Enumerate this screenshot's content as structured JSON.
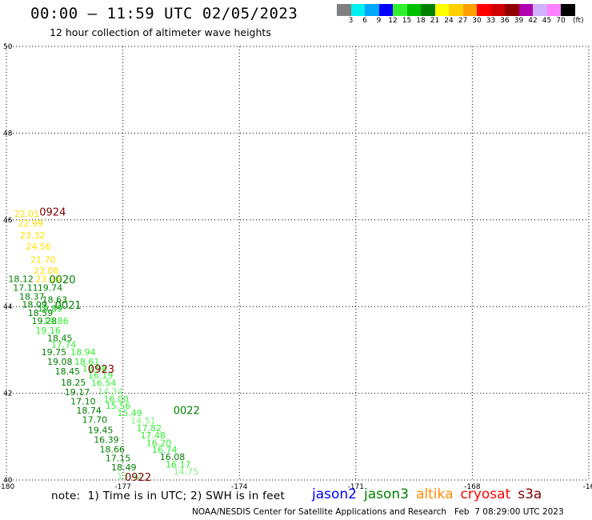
{
  "title": "00:00 – 11:59 UTC 02/05/2023",
  "subtitle": "12 hour collection of altimeter wave heights",
  "legend": {
    "colors": [
      "#808080",
      "#00f0f0",
      "#00a8ff",
      "#0000ff",
      "#30f030",
      "#00c000",
      "#008000",
      "#ffff00",
      "#ffd000",
      "#ffa000",
      "#ff0000",
      "#d00000",
      "#900000",
      "#b000b0",
      "#d0b0ff",
      "#ff80ff",
      "#000000"
    ],
    "labels": [
      "3",
      "6",
      "9",
      "12",
      "15",
      "18",
      "21",
      "24",
      "27",
      "30",
      "33",
      "36",
      "39",
      "42",
      "45",
      "70"
    ],
    "unit": "(ft)"
  },
  "axes": {
    "lat_labels": [
      "50",
      "48",
      "46",
      "44",
      "42",
      "40"
    ],
    "lon_labels": [
      "-180",
      "-177",
      "-174",
      "-171",
      "-168",
      "-16"
    ]
  },
  "observations": [
    {
      "text": "22.01",
      "lon": -179.8,
      "lat": 46.07,
      "color": "#ffe000"
    },
    {
      "text": "22.99",
      "lon": -179.7,
      "lat": 45.85,
      "color": "#ffe000"
    },
    {
      "text": "23.32",
      "lon": -179.65,
      "lat": 45.57,
      "color": "#ffe000"
    },
    {
      "text": "24.56",
      "lon": -179.5,
      "lat": 45.31,
      "color": "#ffe000"
    },
    {
      "text": "21.70",
      "lon": -179.38,
      "lat": 45.01,
      "color": "#ffe000"
    },
    {
      "text": "23.08",
      "lon": -179.3,
      "lat": 44.76,
      "color": "#ffe000"
    },
    {
      "text": "18.12",
      "lon": -179.95,
      "lat": 44.57,
      "color": "#008000"
    },
    {
      "text": "23.06",
      "lon": -179.25,
      "lat": 44.57,
      "color": "#ffe000"
    },
    {
      "text": "17.11",
      "lon": -179.83,
      "lat": 44.36,
      "color": "#008000"
    },
    {
      "text": "19.74",
      "lon": -179.2,
      "lat": 44.36,
      "color": "#008000"
    },
    {
      "text": "18.37",
      "lon": -179.67,
      "lat": 44.16,
      "color": "#008000"
    },
    {
      "text": "18.63",
      "lon": -179.08,
      "lat": 44.09,
      "color": "#008000"
    },
    {
      "text": "18.09",
      "lon": -179.6,
      "lat": 43.98,
      "color": "#008000"
    },
    {
      "text": "19.89",
      "lon": -179.2,
      "lat": 43.88,
      "color": "#00c000"
    },
    {
      "text": "18.59",
      "lon": -179.45,
      "lat": 43.78,
      "color": "#008000"
    },
    {
      "text": "19.28",
      "lon": -179.35,
      "lat": 43.6,
      "color": "#008000"
    },
    {
      "text": "19.86",
      "lon": -179.05,
      "lat": 43.6,
      "color": "#30f030"
    },
    {
      "text": "19.16",
      "lon": -179.25,
      "lat": 43.38,
      "color": "#30f030"
    },
    {
      "text": "18.45",
      "lon": -178.95,
      "lat": 43.2,
      "color": "#008000"
    },
    {
      "text": "17.74",
      "lon": -178.85,
      "lat": 43.05,
      "color": "#30f030"
    },
    {
      "text": "19.75",
      "lon": -179.1,
      "lat": 42.88,
      "color": "#008000"
    },
    {
      "text": "18.94",
      "lon": -178.35,
      "lat": 42.88,
      "color": "#30f030"
    },
    {
      "text": "19.08",
      "lon": -178.95,
      "lat": 42.66,
      "color": "#008000"
    },
    {
      "text": "18.61",
      "lon": -178.25,
      "lat": 42.66,
      "color": "#30f030"
    },
    {
      "text": "18.45",
      "lon": -178.75,
      "lat": 42.44,
      "color": "#008000"
    },
    {
      "text": "18.96",
      "lon": -178.05,
      "lat": 42.5,
      "color": "#30f030"
    },
    {
      "text": "16.19",
      "lon": -177.9,
      "lat": 42.34,
      "color": "#30f030"
    },
    {
      "text": "18.25",
      "lon": -178.6,
      "lat": 42.18,
      "color": "#008000"
    },
    {
      "text": "16.54",
      "lon": -177.82,
      "lat": 42.17,
      "color": "#30f030"
    },
    {
      "text": "19.17",
      "lon": -178.5,
      "lat": 41.96,
      "color": "#008000"
    },
    {
      "text": "14.34",
      "lon": -177.65,
      "lat": 41.97,
      "color": "#80f080"
    },
    {
      "text": "17.10",
      "lon": -178.35,
      "lat": 41.74,
      "color": "#008000"
    },
    {
      "text": "16.00",
      "lon": -177.5,
      "lat": 41.8,
      "color": "#30f030"
    },
    {
      "text": "15.56",
      "lon": -177.45,
      "lat": 41.64,
      "color": "#30f030"
    },
    {
      "text": "18.74",
      "lon": -178.2,
      "lat": 41.53,
      "color": "#008000"
    },
    {
      "text": "15.49",
      "lon": -177.15,
      "lat": 41.48,
      "color": "#30f030"
    },
    {
      "text": "17.70",
      "lon": -178.05,
      "lat": 41.32,
      "color": "#008000"
    },
    {
      "text": "14.51",
      "lon": -176.8,
      "lat": 41.3,
      "color": "#80f080"
    },
    {
      "text": "17.82",
      "lon": -176.65,
      "lat": 41.13,
      "color": "#30f030"
    },
    {
      "text": "19.45",
      "lon": -177.9,
      "lat": 41.08,
      "color": "#008000"
    },
    {
      "text": "17.48",
      "lon": -176.55,
      "lat": 40.96,
      "color": "#30f030"
    },
    {
      "text": "16.39",
      "lon": -177.75,
      "lat": 40.86,
      "color": "#008000"
    },
    {
      "text": "16.20",
      "lon": -176.4,
      "lat": 40.78,
      "color": "#30f030"
    },
    {
      "text": "18.66",
      "lon": -177.6,
      "lat": 40.64,
      "color": "#008000"
    },
    {
      "text": "16.74",
      "lon": -176.25,
      "lat": 40.63,
      "color": "#30f030"
    },
    {
      "text": "16.08",
      "lon": -176.05,
      "lat": 40.46,
      "color": "#008000"
    },
    {
      "text": "17.15",
      "lon": -177.45,
      "lat": 40.43,
      "color": "#008000"
    },
    {
      "text": "16.17",
      "lon": -175.9,
      "lat": 40.29,
      "color": "#30f030"
    },
    {
      "text": "18.49",
      "lon": -177.3,
      "lat": 40.22,
      "color": "#008000"
    },
    {
      "text": "14.75",
      "lon": -175.7,
      "lat": 40.12,
      "color": "#80f080"
    },
    {
      "text": "13.42",
      "lon": -177.15,
      "lat": 40.02,
      "color": "#80f080"
    }
  ],
  "passes": [
    {
      "text": "0924",
      "lon": -179.15,
      "lat": 46.1,
      "color": "#800000"
    },
    {
      "text": "0020",
      "lon": -178.9,
      "lat": 44.54,
      "color": "#008000"
    },
    {
      "text": "0021",
      "lon": -178.75,
      "lat": 43.95,
      "color": "#008000"
    },
    {
      "text": "0923",
      "lon": -177.9,
      "lat": 42.47,
      "color": "#800000"
    },
    {
      "text": "0022",
      "lon": -175.7,
      "lat": 41.52,
      "color": "#008000"
    },
    {
      "text": "0922",
      "lon": -176.95,
      "lat": 39.98,
      "color": "#800000"
    }
  ],
  "note": "note:  1) Time is in UTC; 2) SWH is in feet",
  "satellites": [
    {
      "name": "jason2",
      "color": "#0000ff"
    },
    {
      "name": "jason3",
      "color": "#008000"
    },
    {
      "name": "altika",
      "color": "#ff8c00"
    },
    {
      "name": "cryosat",
      "color": "#ff0000"
    },
    {
      "name": "s3a",
      "color": "#800000"
    }
  ],
  "footer": "NOAA/NESDIS Center for Satellite Applications and Research   Feb  7 08:29:00 UTC 2023"
}
